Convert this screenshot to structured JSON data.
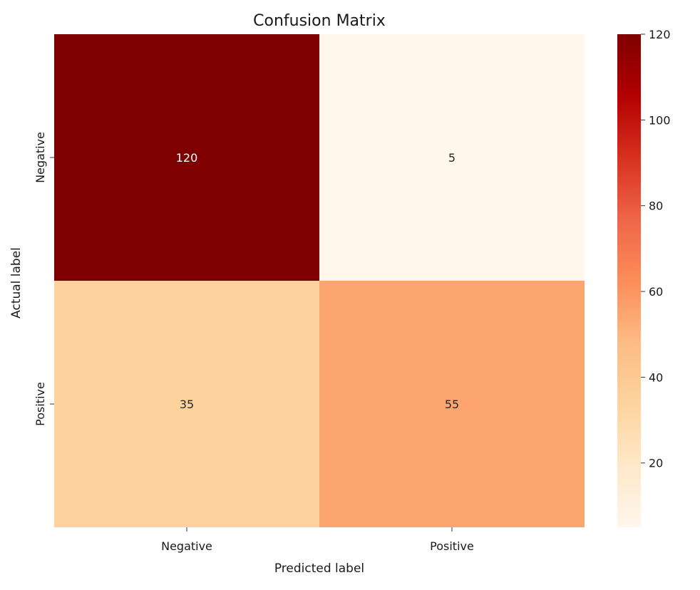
{
  "chart_data": {
    "type": "heatmap",
    "title": "Confusion Matrix",
    "xlabel": "Predicted label",
    "ylabel": "Actual label",
    "x_categories": [
      "Negative",
      "Positive"
    ],
    "y_categories": [
      "Negative",
      "Positive"
    ],
    "values": [
      [
        120,
        5
      ],
      [
        35,
        55
      ]
    ],
    "colormap": "OrRd",
    "colorbar": {
      "vmin": 5,
      "vmax": 120,
      "ticks": [
        20,
        40,
        60,
        80,
        100,
        120
      ],
      "tick_labels": [
        "20",
        "40",
        "60",
        "80",
        "100",
        "120"
      ],
      "colors": [
        "#fff7ec",
        "#fee8c8",
        "#fdd49e",
        "#fdbb84",
        "#fc8d59",
        "#ef6548",
        "#d7301f",
        "#b30000",
        "#7f0000"
      ]
    },
    "annotation_colors": {
      "on_light": "#262626",
      "on_dark": "#ffffff"
    }
  }
}
